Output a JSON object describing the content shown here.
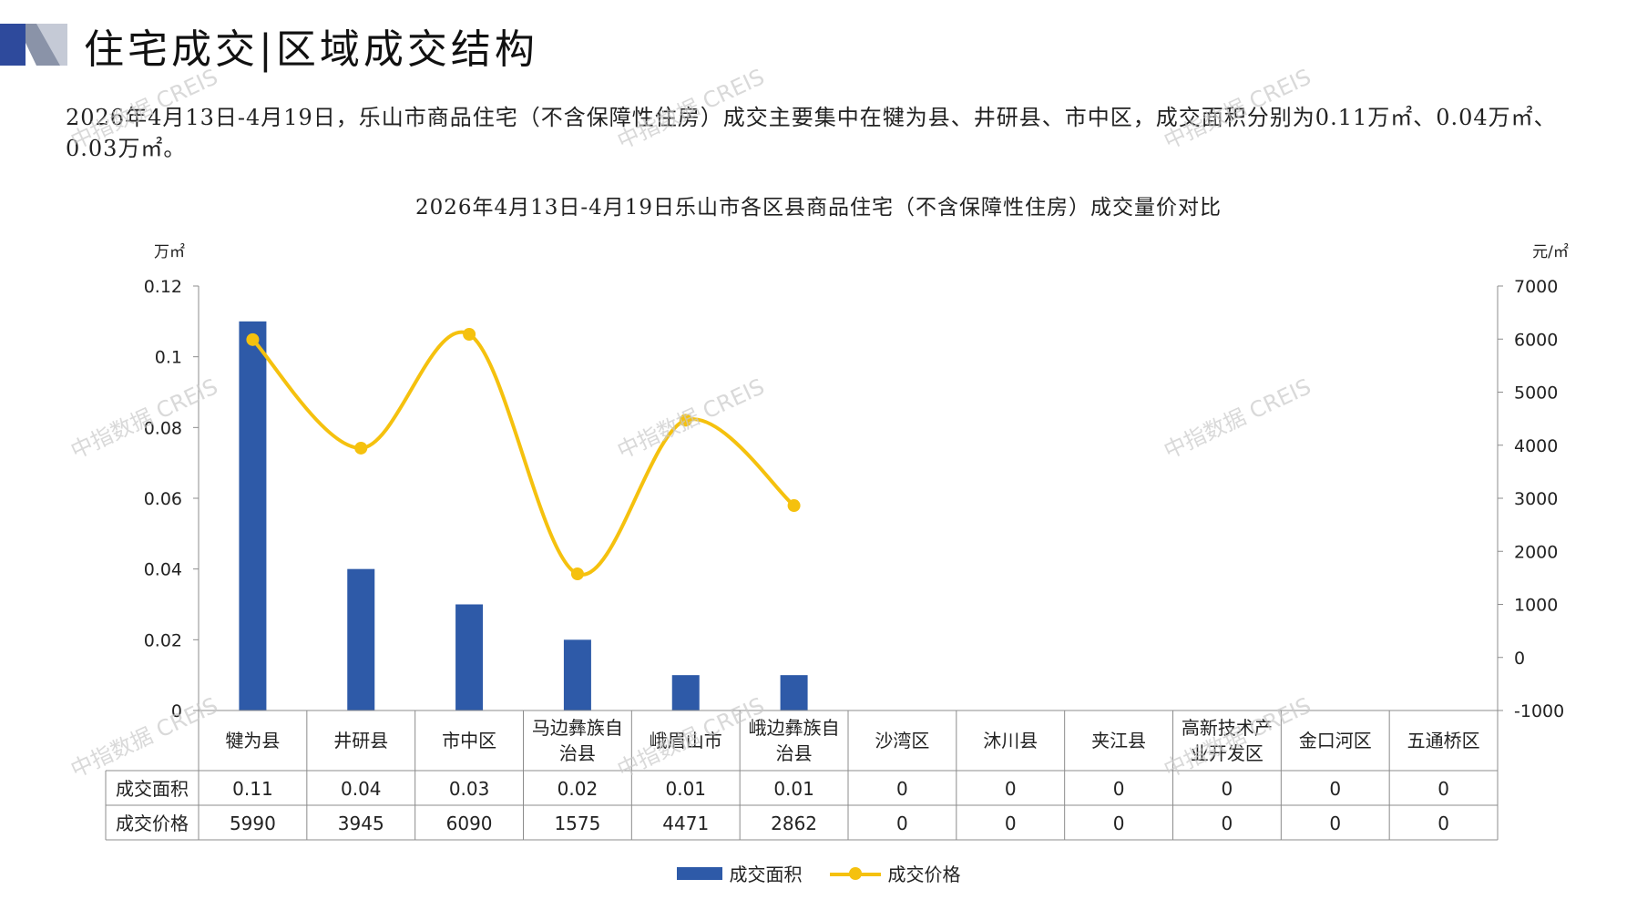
{
  "header": {
    "title": "住宅成交|区域成交结构",
    "colors": {
      "mark_dark": "#2e4a9c",
      "mark_mid": "#8a93a8",
      "mark_light": "#c5cad6"
    }
  },
  "summary": {
    "text": "2026年4月13日-4月19日，乐山市商品住宅（不含保障性住房）成交主要集中在犍为县、井研县、市中区，成交面积分别为0.11万㎡、0.04万㎡、0.03万㎡。"
  },
  "watermark": {
    "text": "中指数据 CREIS"
  },
  "chart_data": {
    "type": "bar",
    "title": "2026年4月13日-4月19日乐山市各区县商品住宅（不含保障性住房）成交量价对比",
    "categories": [
      "犍为县",
      "井研县",
      "市中区",
      "马边彝族自治县",
      "峨眉山市",
      "峨边彝族自治县",
      "沙湾区",
      "沐川县",
      "夹江县",
      "高新技术产业开发区",
      "金口河区",
      "五通桥区"
    ],
    "category_lines": [
      [
        "犍为县"
      ],
      [
        "井研县"
      ],
      [
        "市中区"
      ],
      [
        "马边彝族自",
        "治县"
      ],
      [
        "峨眉山市"
      ],
      [
        "峨边彝族自",
        "治县"
      ],
      [
        "沙湾区"
      ],
      [
        "沐川县"
      ],
      [
        "夹江县"
      ],
      [
        "高新技术产",
        "业开发区"
      ],
      [
        "金口河区"
      ],
      [
        "五通桥区"
      ]
    ],
    "series": [
      {
        "name": "成交面积",
        "type": "bar",
        "axis": "left",
        "color": "#2e5aa8",
        "values": [
          0.11,
          0.04,
          0.03,
          0.02,
          0.01,
          0.01,
          0,
          0,
          0,
          0,
          0,
          0
        ],
        "labels": [
          "0.11",
          "0.04",
          "0.03",
          "0.02",
          "0.01",
          "0.01",
          "0",
          "0",
          "0",
          "0",
          "0",
          "0"
        ]
      },
      {
        "name": "成交价格",
        "type": "line",
        "axis": "right",
        "color": "#f5c10e",
        "values": [
          5990,
          3945,
          6090,
          1575,
          4471,
          2862,
          0,
          0,
          0,
          0,
          0,
          0
        ],
        "labels": [
          "5990",
          "3945",
          "6090",
          "1575",
          "4471",
          "2862",
          "0",
          "0",
          "0",
          "0",
          "0",
          "0"
        ],
        "plotted_count": 6
      }
    ],
    "left_axis": {
      "unit": "万㎡",
      "min": 0,
      "max": 0.12,
      "ticks": [
        0,
        0.02,
        0.04,
        0.06,
        0.08,
        0.1,
        0.12
      ],
      "tick_labels": [
        "0",
        "0.02",
        "0.04",
        "0.06",
        "0.08",
        "0.1",
        "0.12"
      ]
    },
    "right_axis": {
      "unit": "元/㎡",
      "min": -1000,
      "max": 7000,
      "ticks": [
        -1000,
        0,
        1000,
        2000,
        3000,
        4000,
        5000,
        6000,
        7000
      ],
      "tick_labels": [
        "-1000",
        "0",
        "1000",
        "2000",
        "3000",
        "4000",
        "5000",
        "6000",
        "7000"
      ]
    },
    "grid": false,
    "legend": "bottom-center",
    "data_table": true
  }
}
